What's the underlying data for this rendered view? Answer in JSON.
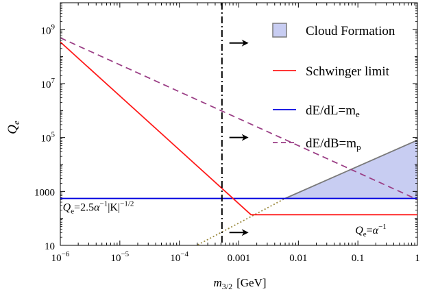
{
  "chart_data": {
    "type": "line",
    "xlabel_italic": "m",
    "xlabel_sub": "3/2",
    "xlabel_unit": "[GeV]",
    "ylabel_italic": "Q",
    "ylabel_sub": "e",
    "xscale": "log",
    "yscale": "log",
    "xlim": [
      1e-06,
      1
    ],
    "ylim": [
      10,
      10000000000.0
    ],
    "grid": false,
    "legend_position": "top-right",
    "x_tick_labels": [
      {
        "x": 1e-06,
        "base": "10",
        "exp": "−6"
      },
      {
        "x": 1e-05,
        "base": "10",
        "exp": "−5"
      },
      {
        "x": 0.0001,
        "base": "10",
        "exp": "−4"
      },
      {
        "x": 0.001,
        "text": "0.001"
      },
      {
        "x": 0.01,
        "text": "0.01"
      },
      {
        "x": 0.1,
        "text": "0.1"
      },
      {
        "x": 1,
        "text": "1"
      }
    ],
    "y_tick_labels": [
      {
        "y": 10,
        "text": "10"
      },
      {
        "y": 1000,
        "text": "1000"
      },
      {
        "y": 100000.0,
        "base": "10",
        "exp": "5"
      },
      {
        "y": 10000000.0,
        "base": "10",
        "exp": "7"
      },
      {
        "y": 1000000000.0,
        "base": "10",
        "exp": "9"
      }
    ],
    "series": [
      {
        "name": "Cloud Formation",
        "kind": "area",
        "color": "#c8cdf2",
        "edge_color": "#7a7a7a",
        "x": [
          0.006,
          1,
          1
        ],
        "y": [
          550,
          80000,
          550
        ]
      },
      {
        "name": "Schwinger limit",
        "kind": "line",
        "color": "#ff1a1a",
        "x": [
          1e-06,
          0.0016,
          1
        ],
        "y": [
          350000000.0,
          137,
          137
        ]
      },
      {
        "name": "dE/dL=m",
        "name_sub": "e",
        "kind": "line",
        "color": "#0000e0",
        "x": [
          1e-06,
          1
        ],
        "y": [
          550,
          550
        ]
      },
      {
        "name": "dE/dB=m",
        "name_sub": "p",
        "kind": "dashed",
        "color": "#9b3f86",
        "x": [
          1e-06,
          1
        ],
        "y": [
          500000000.0,
          500
        ]
      },
      {
        "kind": "dotted",
        "color": "#9b8a3e",
        "x": [
          9e-05,
          0.006
        ],
        "y": [
          4,
          550
        ]
      },
      {
        "kind": "dashdot-vertical",
        "color": "#000000",
        "x": [
          0.00052,
          0.00052
        ],
        "y": [
          10,
          10000000000.0
        ]
      }
    ],
    "arrows": [
      {
        "x": 0.00064,
        "y": 320000000.0
      },
      {
        "x": 0.00064,
        "y": 100000.0
      },
      {
        "x": 0.00064,
        "y": 30
      }
    ],
    "annotations": [
      {
        "id": "k-formula",
        "italic": "Q",
        "sub": "e",
        "text1": "=2.5",
        "alpha": "α",
        "sup1": "−1",
        "text2": "|K|",
        "sup2": "−1/2",
        "x": 1.1e-06,
        "y": 190
      },
      {
        "id": "alpha-formula",
        "italic": "Q",
        "sub": "e",
        "text1": "=",
        "alpha": "α",
        "sup1": "−1",
        "x": 0.09,
        "y": 27
      }
    ]
  }
}
